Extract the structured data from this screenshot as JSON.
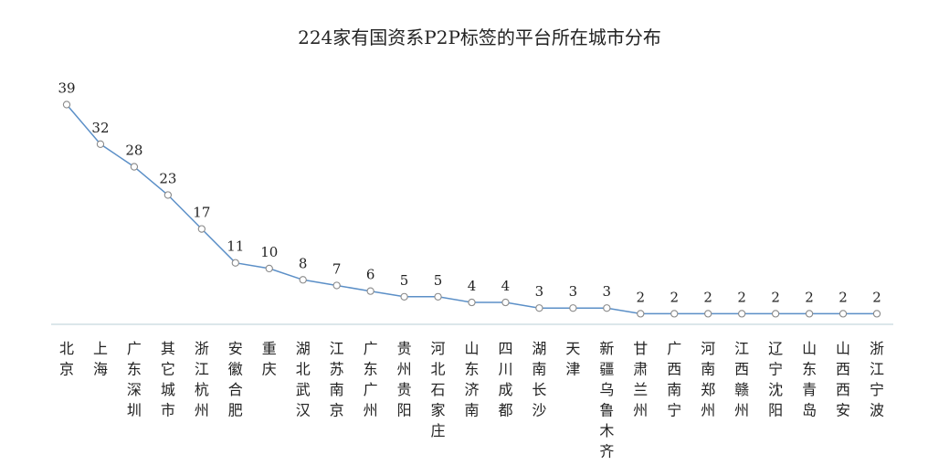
{
  "chart_data": {
    "type": "line",
    "title": "224家有国资系P2P标签的平台所在城市分布",
    "categories": [
      "北京",
      "上海",
      "广东深圳",
      "其它城市",
      "浙江杭州",
      "安徽合肥",
      "重庆",
      "湖北武汉",
      "江苏南京",
      "广东广州",
      "贵州贵阳",
      "河北石家庄",
      "山东济南",
      "四川成都",
      "湖南长沙",
      "天津",
      "新疆乌鲁木齐",
      "甘肃兰州",
      "广西南宁",
      "河南郑州",
      "江西赣州",
      "辽宁沈阳",
      "山东青岛",
      "山西西安",
      "浙江宁波"
    ],
    "series": [
      {
        "values": [
          39,
          32,
          28,
          23,
          17,
          11,
          10,
          8,
          7,
          6,
          5,
          5,
          4,
          4,
          3,
          3,
          3,
          2,
          2,
          2,
          2,
          2,
          2,
          2,
          2
        ]
      }
    ],
    "ylim": [
      0,
      42
    ],
    "grid": false,
    "legend": "none",
    "data_labels": true,
    "colors": {
      "line": "#5b8fc7",
      "marker_fill": "#ffffff",
      "marker_stroke": "#8a8a8a",
      "axis": "#b8cfd6",
      "text": "#222222"
    }
  }
}
